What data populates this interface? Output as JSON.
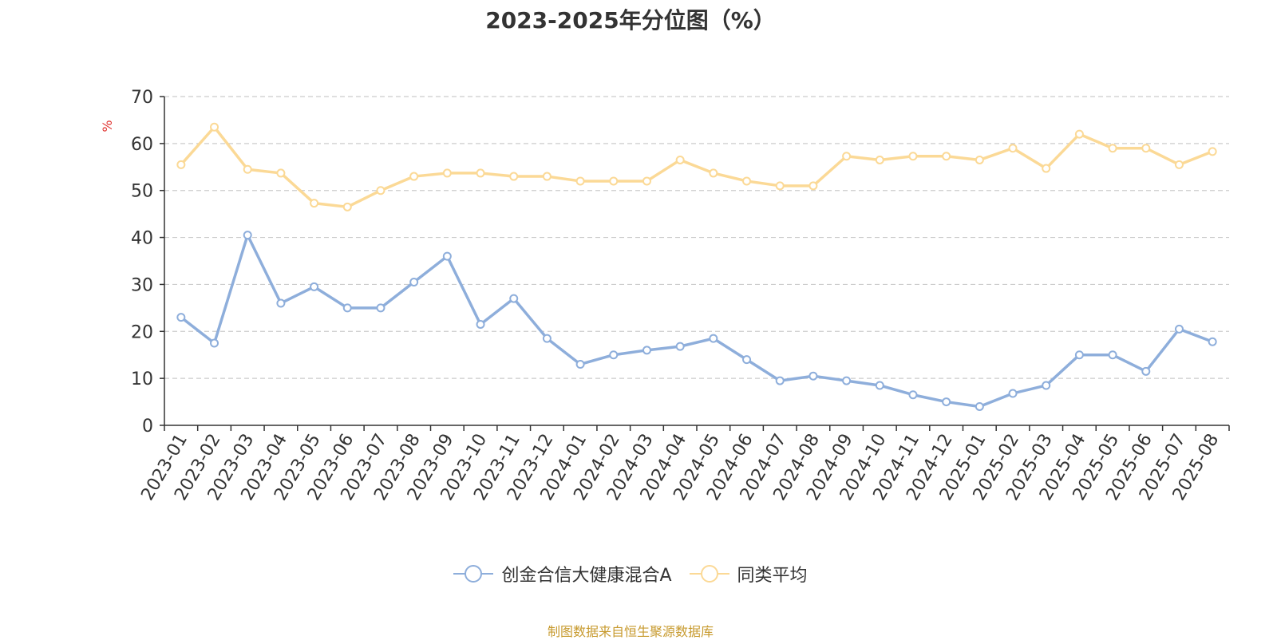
{
  "chart_data": {
    "type": "line",
    "title": "2023-2025年分位图（%）",
    "ylabel": "%",
    "xlabel": "",
    "ylim": [
      0,
      70
    ],
    "yticks": [
      0,
      10,
      20,
      30,
      40,
      50,
      60,
      70
    ],
    "grid": true,
    "legend_position": "bottom",
    "categories": [
      "2023-01",
      "2023-02",
      "2023-03",
      "2023-04",
      "2023-05",
      "2023-06",
      "2023-07",
      "2023-08",
      "2023-09",
      "2023-10",
      "2023-11",
      "2023-12",
      "2024-01",
      "2024-02",
      "2024-03",
      "2024-04",
      "2024-05",
      "2024-06",
      "2024-07",
      "2024-08",
      "2024-09",
      "2024-10",
      "2024-11",
      "2024-12",
      "2025-01",
      "2025-02",
      "2025-03",
      "2025-04",
      "2025-05",
      "2025-06",
      "2025-07",
      "2025-08"
    ],
    "series": [
      {
        "name": "创金合信大健康混合A",
        "color": "#8eaedb",
        "values": [
          23.0,
          17.5,
          40.5,
          26.0,
          29.5,
          25.0,
          25.0,
          30.5,
          36.0,
          21.5,
          27.0,
          18.5,
          13.0,
          15.0,
          16.0,
          16.8,
          18.5,
          14.0,
          9.5,
          10.5,
          9.5,
          8.5,
          6.5,
          5.0,
          4.0,
          6.8,
          8.5,
          15.0,
          15.0,
          11.5,
          20.5,
          17.8
        ]
      },
      {
        "name": "同类平均",
        "color": "#fbd996",
        "values": [
          55.5,
          63.5,
          54.5,
          53.7,
          47.3,
          46.5,
          50.0,
          53.0,
          53.7,
          53.7,
          53.0,
          53.0,
          52.0,
          52.0,
          52.0,
          56.5,
          53.7,
          52.0,
          51.0,
          51.0,
          57.3,
          56.5,
          57.3,
          57.3,
          56.5,
          59.0,
          54.7,
          62.0,
          59.0,
          59.0,
          55.5,
          58.3
        ]
      }
    ]
  },
  "source_note": "制图数据来自恒生聚源数据库"
}
